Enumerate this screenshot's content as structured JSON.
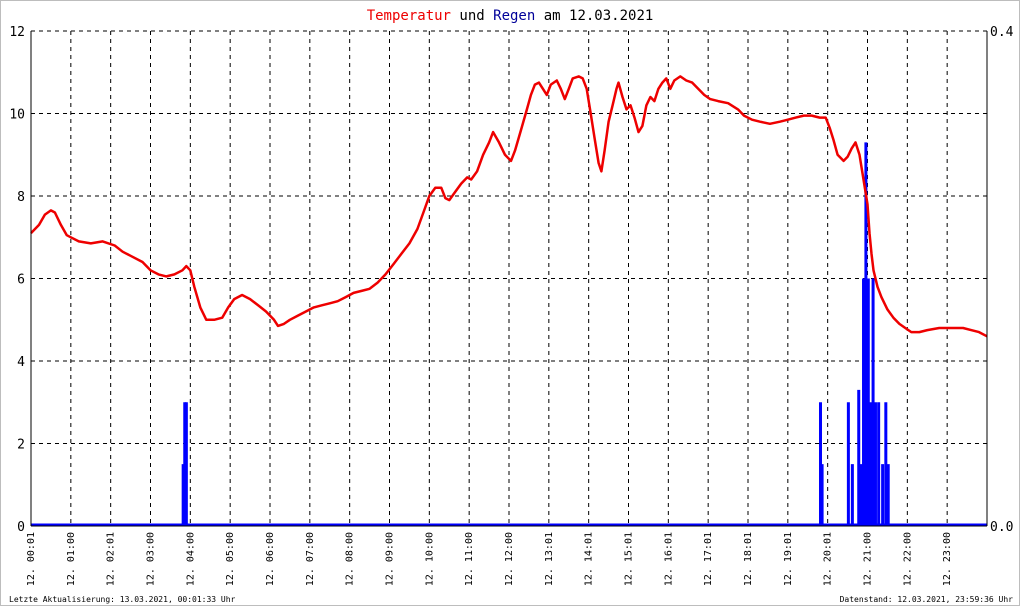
{
  "title": {
    "part1": "Temperatur",
    "part2": " und ",
    "part3": "Regen",
    "part4": " am 12.03.2021"
  },
  "footer": {
    "left": "Letzte Aktualisierung: 13.03.2021, 00:01:33 Uhr",
    "right": "Datenstand: 12.03.2021, 23:59:36 Uhr"
  },
  "colors": {
    "temperature": "#ee0000",
    "rain": "#0000ff",
    "title_temp": "#ee0000",
    "title_rain": "#000099",
    "grid": "#000000"
  },
  "chart_data": {
    "type": "line",
    "x_range_hours": [
      0,
      24
    ],
    "y_left_ticks": [
      "0",
      "2",
      "4",
      "6",
      "8",
      "10",
      "12"
    ],
    "y_left_range": [
      0,
      12
    ],
    "y_right_ticks": [
      "0.0",
      "0.4"
    ],
    "y_right_range": [
      0,
      0.4
    ],
    "x_tick_labels": [
      "12. 00:01",
      "12. 01:00",
      "12. 02:01",
      "12. 03:00",
      "12. 04:00",
      "12. 05:00",
      "12. 06:00",
      "12. 07:00",
      "12. 08:00",
      "12. 09:00",
      "12. 10:00",
      "12. 11:00",
      "12. 12:00",
      "12. 13:01",
      "12. 14:01",
      "12. 15:01",
      "12. 16:01",
      "12. 17:01",
      "12. 18:01",
      "12. 19:01",
      "12. 20:01",
      "12. 21:00",
      "12. 22:00",
      "12. 23:00"
    ],
    "grid": true,
    "series": [
      {
        "name": "Temperatur",
        "axis": "left",
        "points": [
          [
            0.0,
            7.1
          ],
          [
            0.2,
            7.3
          ],
          [
            0.35,
            7.55
          ],
          [
            0.5,
            7.65
          ],
          [
            0.6,
            7.6
          ],
          [
            0.75,
            7.3
          ],
          [
            0.9,
            7.05
          ],
          [
            1.0,
            7.0
          ],
          [
            1.2,
            6.9
          ],
          [
            1.5,
            6.85
          ],
          [
            1.8,
            6.9
          ],
          [
            2.1,
            6.8
          ],
          [
            2.3,
            6.65
          ],
          [
            2.5,
            6.55
          ],
          [
            2.8,
            6.4
          ],
          [
            3.0,
            6.2
          ],
          [
            3.2,
            6.1
          ],
          [
            3.4,
            6.05
          ],
          [
            3.6,
            6.1
          ],
          [
            3.8,
            6.2
          ],
          [
            3.9,
            6.3
          ],
          [
            4.0,
            6.2
          ],
          [
            4.1,
            5.8
          ],
          [
            4.25,
            5.3
          ],
          [
            4.4,
            5.0
          ],
          [
            4.6,
            5.0
          ],
          [
            4.8,
            5.05
          ],
          [
            4.95,
            5.3
          ],
          [
            5.1,
            5.5
          ],
          [
            5.3,
            5.6
          ],
          [
            5.5,
            5.5
          ],
          [
            5.7,
            5.35
          ],
          [
            5.9,
            5.2
          ],
          [
            6.1,
            5.0
          ],
          [
            6.2,
            4.85
          ],
          [
            6.35,
            4.9
          ],
          [
            6.5,
            5.0
          ],
          [
            6.7,
            5.1
          ],
          [
            6.9,
            5.2
          ],
          [
            7.1,
            5.3
          ],
          [
            7.3,
            5.35
          ],
          [
            7.5,
            5.4
          ],
          [
            7.7,
            5.45
          ],
          [
            7.9,
            5.55
          ],
          [
            8.1,
            5.65
          ],
          [
            8.3,
            5.7
          ],
          [
            8.5,
            5.75
          ],
          [
            8.7,
            5.9
          ],
          [
            8.9,
            6.1
          ],
          [
            9.1,
            6.35
          ],
          [
            9.3,
            6.6
          ],
          [
            9.5,
            6.85
          ],
          [
            9.7,
            7.2
          ],
          [
            9.85,
            7.6
          ],
          [
            10.0,
            8.0
          ],
          [
            10.15,
            8.2
          ],
          [
            10.3,
            8.2
          ],
          [
            10.4,
            7.95
          ],
          [
            10.5,
            7.9
          ],
          [
            10.65,
            8.1
          ],
          [
            10.8,
            8.3
          ],
          [
            10.95,
            8.45
          ],
          [
            11.05,
            8.4
          ],
          [
            11.2,
            8.6
          ],
          [
            11.35,
            9.0
          ],
          [
            11.5,
            9.3
          ],
          [
            11.6,
            9.55
          ],
          [
            11.75,
            9.3
          ],
          [
            11.9,
            9.0
          ],
          [
            12.05,
            8.85
          ],
          [
            12.15,
            9.1
          ],
          [
            12.3,
            9.6
          ],
          [
            12.45,
            10.1
          ],
          [
            12.55,
            10.45
          ],
          [
            12.65,
            10.7
          ],
          [
            12.75,
            10.75
          ],
          [
            12.85,
            10.6
          ],
          [
            12.95,
            10.45
          ],
          [
            13.05,
            10.7
          ],
          [
            13.2,
            10.8
          ],
          [
            13.3,
            10.6
          ],
          [
            13.4,
            10.35
          ],
          [
            13.5,
            10.6
          ],
          [
            13.6,
            10.85
          ],
          [
            13.75,
            10.9
          ],
          [
            13.85,
            10.85
          ],
          [
            13.95,
            10.6
          ],
          [
            14.05,
            10.0
          ],
          [
            14.15,
            9.4
          ],
          [
            14.25,
            8.8
          ],
          [
            14.32,
            8.6
          ],
          [
            14.4,
            9.1
          ],
          [
            14.5,
            9.8
          ],
          [
            14.6,
            10.2
          ],
          [
            14.7,
            10.6
          ],
          [
            14.75,
            10.75
          ],
          [
            14.85,
            10.4
          ],
          [
            14.95,
            10.1
          ],
          [
            15.05,
            10.2
          ],
          [
            15.15,
            9.9
          ],
          [
            15.25,
            9.55
          ],
          [
            15.35,
            9.7
          ],
          [
            15.45,
            10.2
          ],
          [
            15.55,
            10.4
          ],
          [
            15.65,
            10.3
          ],
          [
            15.75,
            10.6
          ],
          [
            15.85,
            10.75
          ],
          [
            15.95,
            10.85
          ],
          [
            16.05,
            10.6
          ],
          [
            16.15,
            10.8
          ],
          [
            16.3,
            10.9
          ],
          [
            16.45,
            10.8
          ],
          [
            16.6,
            10.75
          ],
          [
            16.75,
            10.6
          ],
          [
            16.9,
            10.45
          ],
          [
            17.05,
            10.35
          ],
          [
            17.25,
            10.3
          ],
          [
            17.5,
            10.25
          ],
          [
            17.75,
            10.1
          ],
          [
            17.9,
            9.95
          ],
          [
            18.1,
            9.85
          ],
          [
            18.3,
            9.8
          ],
          [
            18.55,
            9.75
          ],
          [
            18.8,
            9.8
          ],
          [
            19.0,
            9.85
          ],
          [
            19.2,
            9.9
          ],
          [
            19.4,
            9.95
          ],
          [
            19.6,
            9.95
          ],
          [
            19.8,
            9.9
          ],
          [
            19.95,
            9.9
          ],
          [
            20.05,
            9.65
          ],
          [
            20.15,
            9.35
          ],
          [
            20.25,
            9.0
          ],
          [
            20.4,
            8.85
          ],
          [
            20.5,
            8.95
          ],
          [
            20.6,
            9.15
          ],
          [
            20.7,
            9.3
          ],
          [
            20.8,
            9.0
          ],
          [
            20.9,
            8.4
          ],
          [
            21.0,
            7.8
          ],
          [
            21.05,
            7.1
          ],
          [
            21.1,
            6.6
          ],
          [
            21.15,
            6.2
          ],
          [
            21.25,
            5.8
          ],
          [
            21.35,
            5.55
          ],
          [
            21.5,
            5.25
          ],
          [
            21.65,
            5.05
          ],
          [
            21.8,
            4.9
          ],
          [
            21.95,
            4.8
          ],
          [
            22.1,
            4.7
          ],
          [
            22.3,
            4.7
          ],
          [
            22.5,
            4.75
          ],
          [
            22.8,
            4.8
          ],
          [
            23.1,
            4.8
          ],
          [
            23.4,
            4.8
          ],
          [
            23.6,
            4.75
          ],
          [
            23.8,
            4.7
          ],
          [
            24.0,
            4.6
          ]
        ]
      },
      {
        "name": "Regen",
        "axis": "right",
        "bars": [
          [
            3.82,
            0.05
          ],
          [
            3.86,
            0.1
          ],
          [
            3.9,
            0.1
          ],
          [
            19.82,
            0.1
          ],
          [
            19.86,
            0.05
          ],
          [
            20.52,
            0.1
          ],
          [
            20.62,
            0.05
          ],
          [
            20.78,
            0.11
          ],
          [
            20.84,
            0.05
          ],
          [
            20.9,
            0.2
          ],
          [
            20.96,
            0.31
          ],
          [
            21.02,
            0.2
          ],
          [
            21.08,
            0.1
          ],
          [
            21.14,
            0.2
          ],
          [
            21.2,
            0.1
          ],
          [
            21.28,
            0.1
          ],
          [
            21.38,
            0.05
          ],
          [
            21.46,
            0.1
          ],
          [
            21.52,
            0.05
          ]
        ]
      }
    ]
  }
}
